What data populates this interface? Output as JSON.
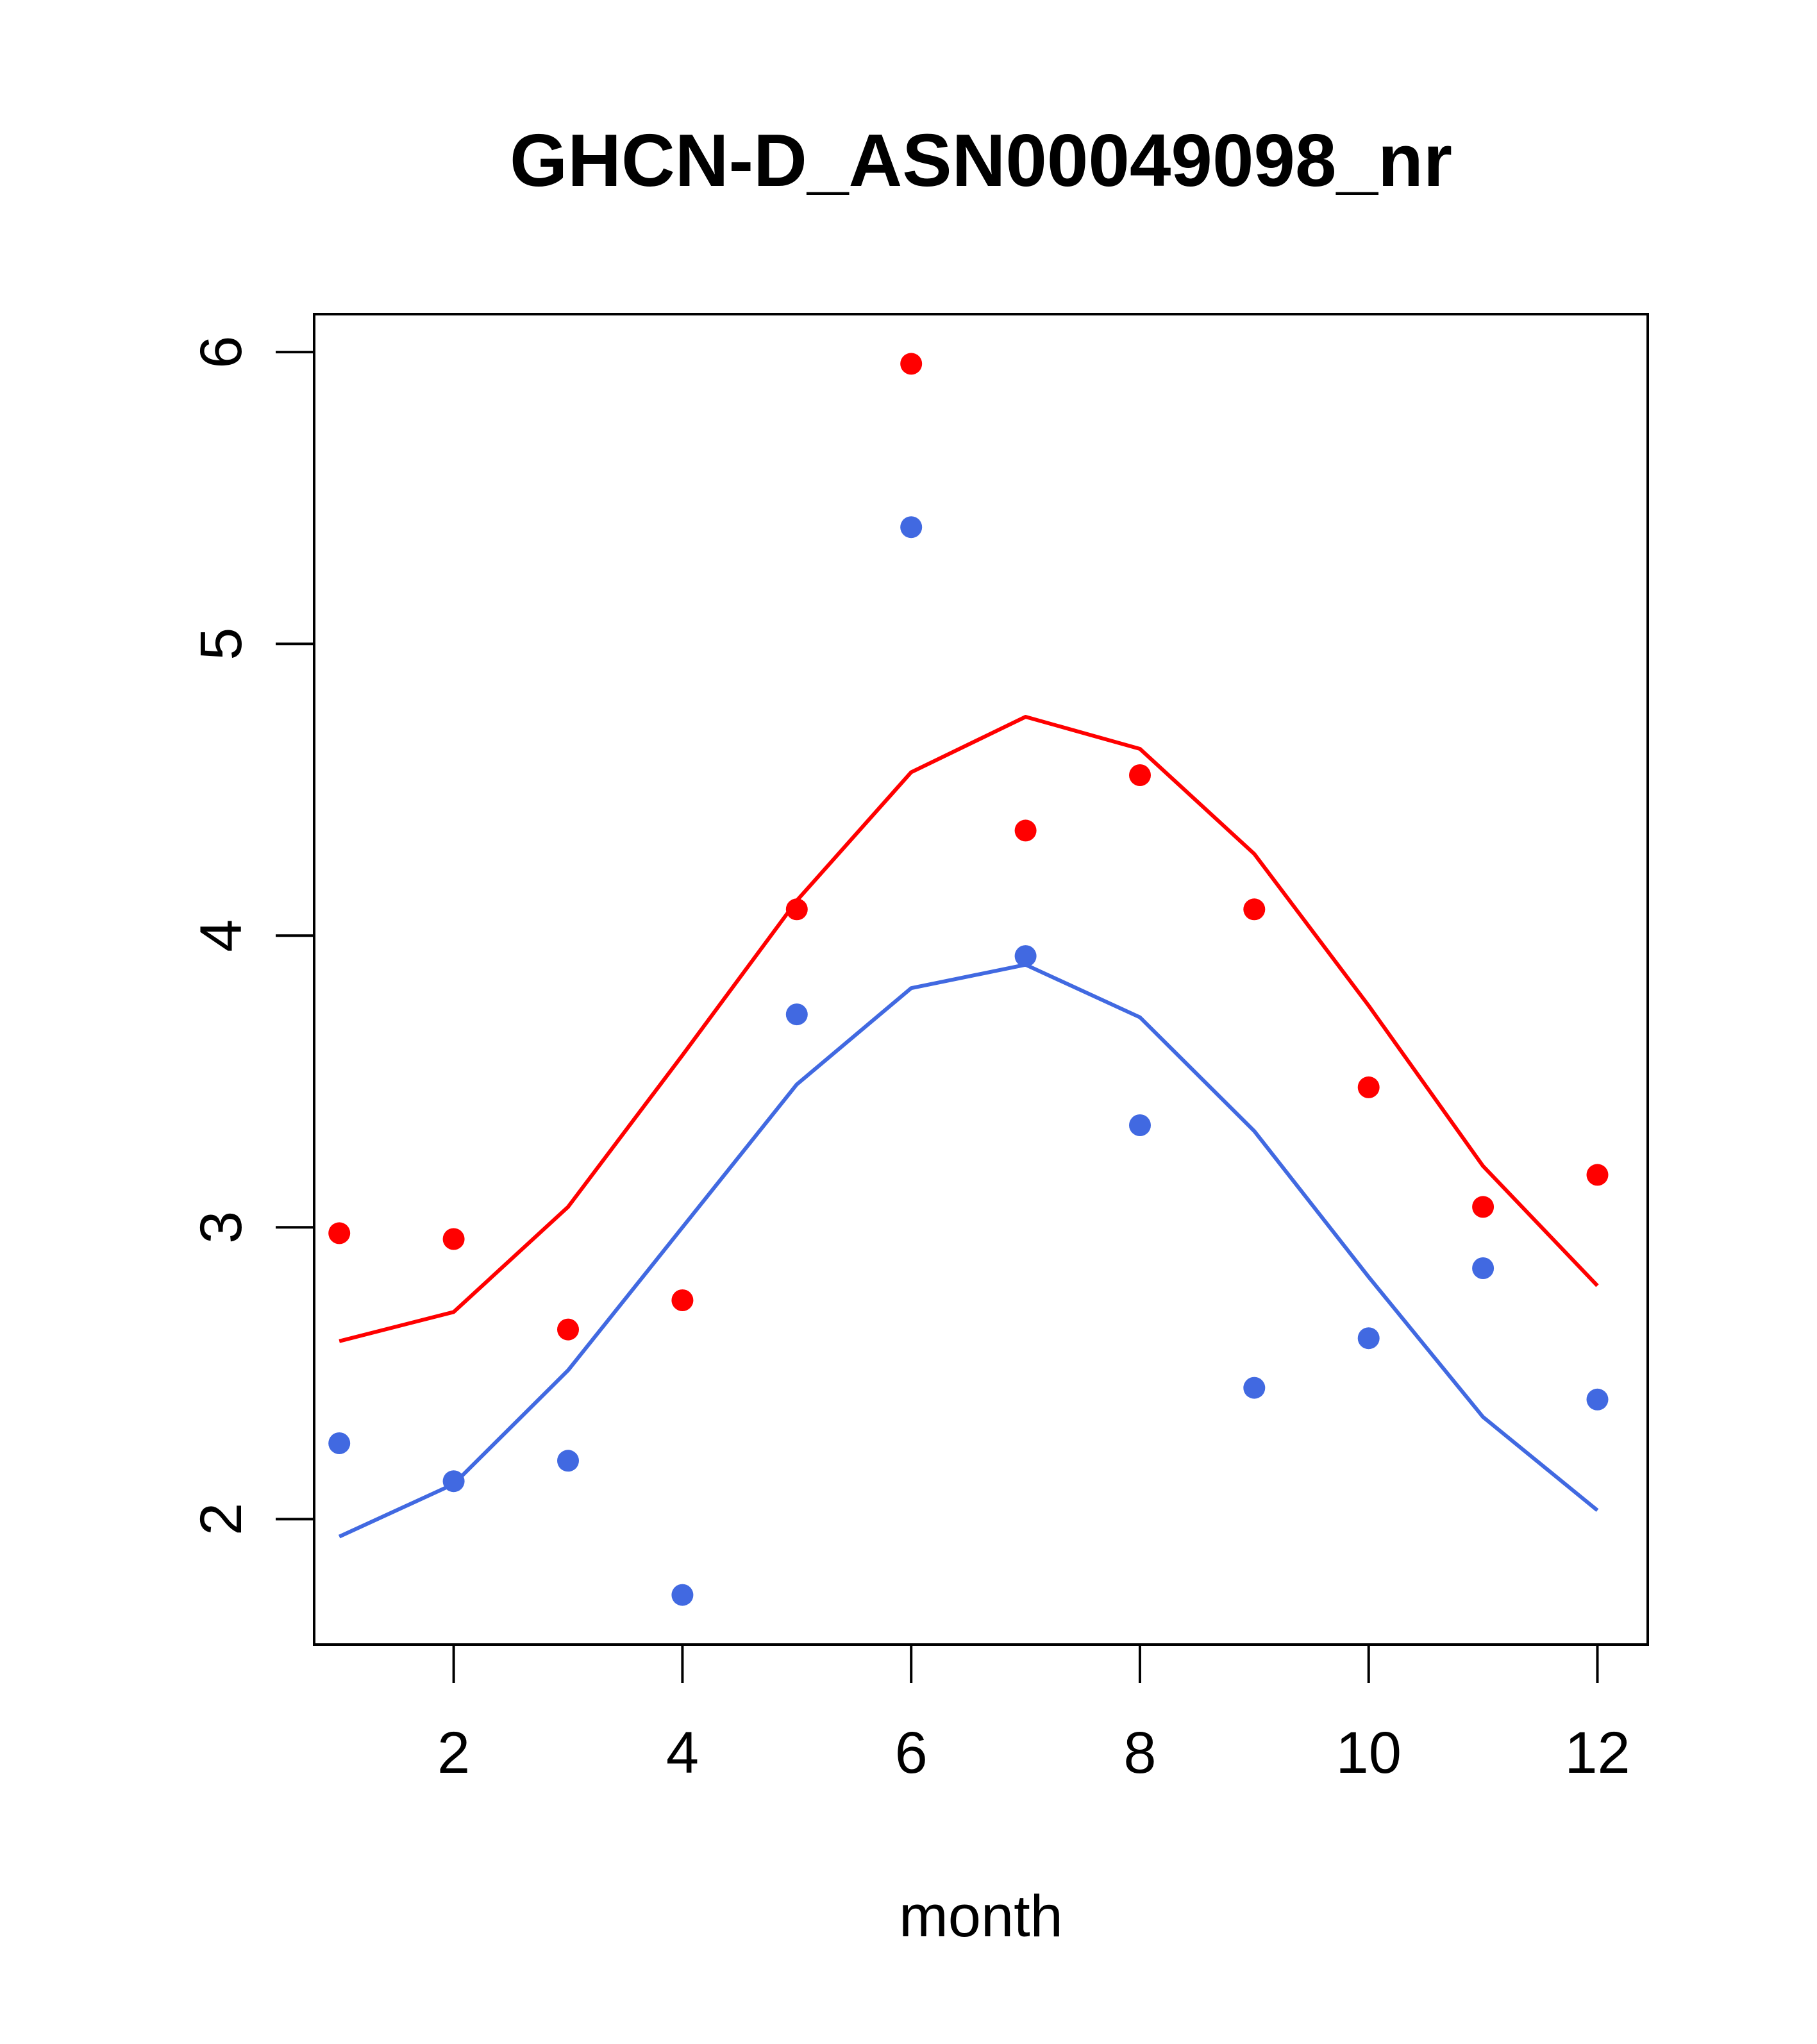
{
  "chart_data": {
    "type": "scatter",
    "title": "GHCN-D_ASN00049098_nr",
    "xlabel": "month",
    "ylabel": "",
    "xlim": [
      0.78,
      12.44
    ],
    "ylim": [
      1.57,
      6.13
    ],
    "x_ticks": [
      2,
      4,
      6,
      8,
      10,
      12
    ],
    "y_ticks": [
      2,
      3,
      4,
      5,
      6
    ],
    "grid": false,
    "legend": "none",
    "series": [
      {
        "kind": "points",
        "color": "#ff0000",
        "x": [
          1,
          2,
          3,
          4,
          5,
          6,
          7,
          8,
          9,
          10,
          11,
          12
        ],
        "y": [
          2.98,
          2.96,
          2.65,
          2.75,
          4.09,
          5.96,
          4.36,
          4.55,
          4.09,
          3.48,
          3.07,
          3.18
        ]
      },
      {
        "kind": "points",
        "color": "#4169e1",
        "x": [
          1,
          2,
          3,
          4,
          5,
          6,
          7,
          8,
          9,
          10,
          11,
          12
        ],
        "y": [
          2.26,
          2.13,
          2.2,
          1.74,
          3.73,
          5.4,
          3.93,
          3.35,
          2.45,
          2.62,
          2.86,
          2.41
        ]
      },
      {
        "kind": "line",
        "color": "#ff0000",
        "x": [
          1,
          2,
          3,
          4,
          5,
          6,
          7,
          8,
          9,
          10,
          11,
          12
        ],
        "y": [
          2.61,
          2.71,
          3.07,
          3.59,
          4.12,
          4.56,
          4.75,
          4.64,
          4.28,
          3.76,
          3.21,
          2.8
        ]
      },
      {
        "kind": "line",
        "color": "#4169e1",
        "x": [
          1,
          2,
          3,
          4,
          5,
          6,
          7,
          8,
          9,
          10,
          11,
          12
        ],
        "y": [
          1.94,
          2.12,
          2.51,
          3.0,
          3.49,
          3.82,
          3.9,
          3.72,
          3.33,
          2.83,
          2.35,
          2.03
        ]
      }
    ]
  }
}
